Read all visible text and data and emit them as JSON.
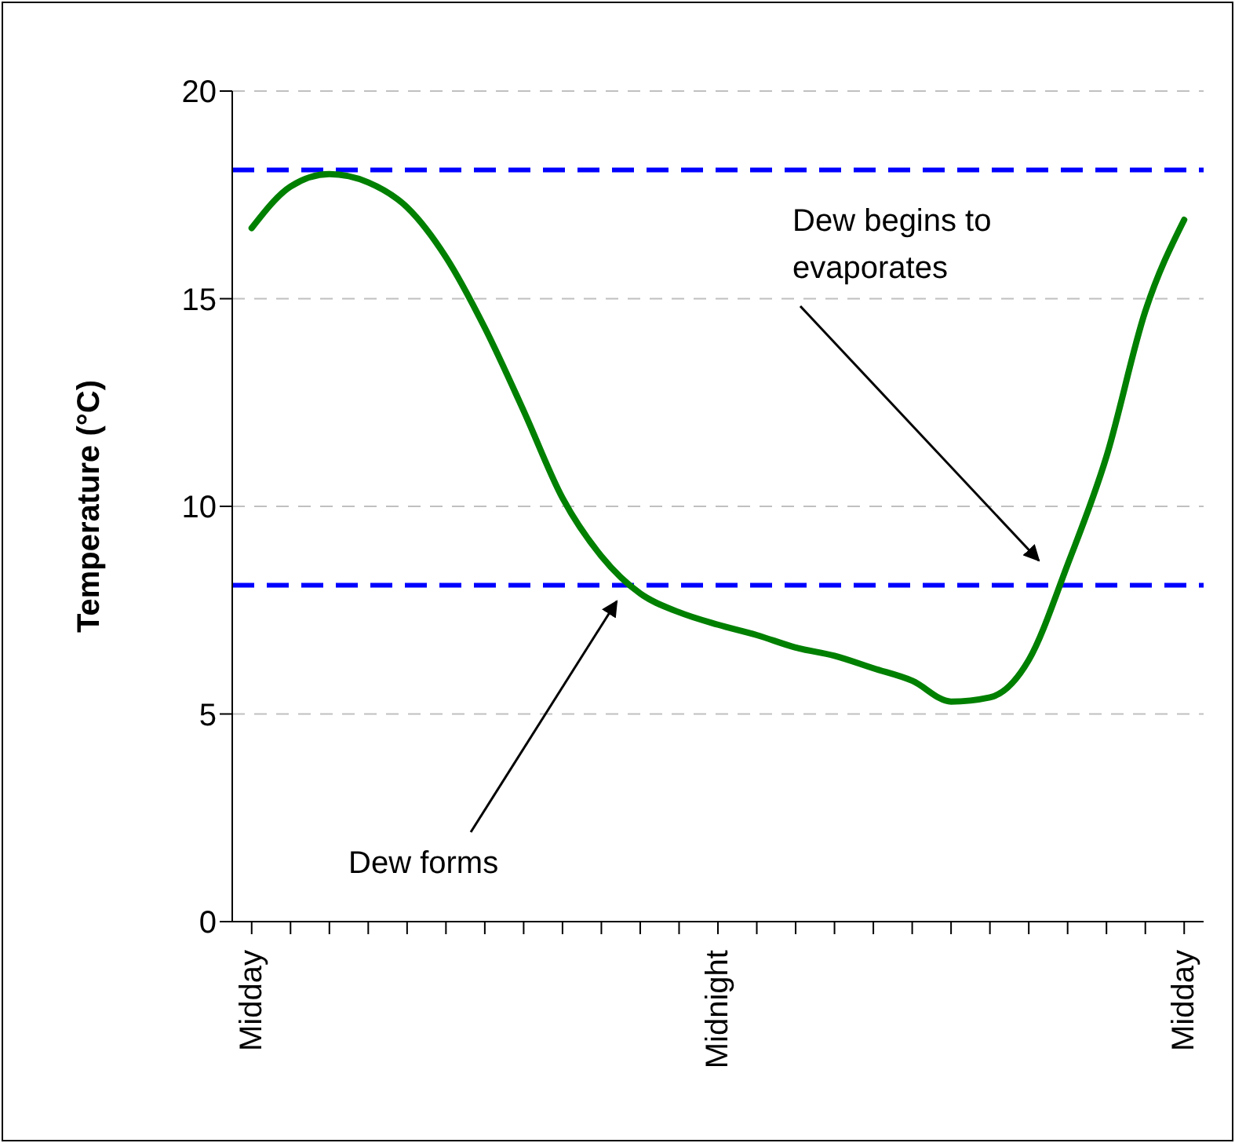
{
  "chart_data": {
    "type": "line",
    "ylabel": "Temperature (°C)",
    "categories": [
      "Midday",
      null,
      null,
      null,
      null,
      null,
      null,
      null,
      null,
      null,
      null,
      null,
      "Midnight",
      null,
      null,
      null,
      null,
      null,
      null,
      null,
      null,
      null,
      null,
      null,
      "Midday"
    ],
    "ylim": [
      0,
      20
    ],
    "yticks": [
      0,
      5,
      10,
      15,
      20
    ],
    "grid": "y",
    "marker": "none",
    "line_style": "solid",
    "series": [
      {
        "color": "#008000",
        "values": [
          16.7,
          17.7,
          18.0,
          17.8,
          17.2,
          16.0,
          14.3,
          12.3,
          10.2,
          8.8,
          7.9,
          7.45,
          7.15,
          6.9,
          6.6,
          6.4,
          6.1,
          5.8,
          5.3,
          5.4,
          6.3,
          8.6,
          11.2,
          14.7,
          16.9
        ]
      }
    ],
    "ref_lines": [
      {
        "axis": "y",
        "value": 18.1,
        "color": "#0000ff",
        "line_style": "dashed"
      },
      {
        "axis": "y",
        "value": 8.1,
        "color": "#0000ff",
        "line_style": "dashed"
      }
    ],
    "annotations": [
      "Dew begins to evaporates",
      "Dew forms"
    ]
  }
}
